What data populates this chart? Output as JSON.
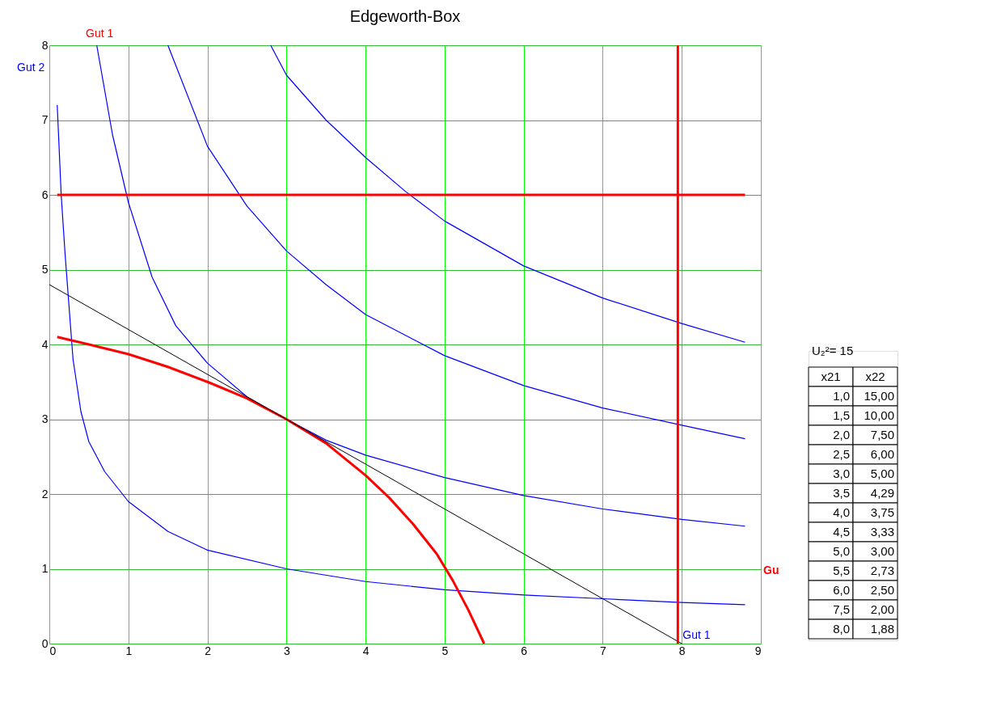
{
  "chart_data": {
    "type": "line",
    "title": "Edgeworth-Box",
    "xlim": [
      0,
      9
    ],
    "ylim": [
      0,
      8
    ],
    "xticks": [
      0,
      1,
      2,
      3,
      4,
      5,
      6,
      7,
      8,
      9
    ],
    "yticks": [
      0,
      1,
      2,
      3,
      4,
      5,
      6,
      7,
      8
    ],
    "grid": true,
    "marker": "none",
    "line_style": "solid",
    "series": [
      {
        "color": "#0000ff",
        "x": [
          0.1,
          0.15,
          0.2,
          0.25,
          0.3,
          0.4,
          0.5,
          0.7,
          1,
          1.5,
          2,
          3,
          4,
          5,
          6,
          7,
          8,
          8.8
        ],
        "values": [
          7.2,
          6.0,
          5.2,
          4.5,
          3.8,
          3.1,
          2.7,
          2.3,
          1.9,
          1.5,
          1.25,
          1.0,
          0.83,
          0.72,
          0.65,
          0.6,
          0.55,
          0.52
        ]
      },
      {
        "color": "#0000ff",
        "x": [
          0.6,
          0.8,
          1,
          1.3,
          1.6,
          2,
          2.5,
          3,
          3.5,
          4,
          5,
          6,
          7,
          8,
          8.8
        ],
        "values": [
          8,
          6.8,
          5.9,
          4.9,
          4.25,
          3.75,
          3.3,
          3.0,
          2.72,
          2.52,
          2.22,
          1.98,
          1.8,
          1.66,
          1.57
        ]
      },
      {
        "color": "#0000ff",
        "x": [
          1.5,
          2,
          2.5,
          3,
          3.5,
          4,
          5,
          6,
          7,
          8,
          8.8
        ],
        "values": [
          8,
          6.65,
          5.85,
          5.25,
          4.8,
          4.4,
          3.85,
          3.45,
          3.15,
          2.92,
          2.74
        ]
      },
      {
        "color": "#0000ff",
        "x": [
          2.8,
          3,
          3.5,
          4,
          4.5,
          5,
          6,
          7,
          8,
          8.8
        ],
        "values": [
          8,
          7.6,
          7.0,
          6.5,
          6.05,
          5.65,
          5.05,
          4.62,
          4.28,
          4.03
        ]
      },
      {
        "color": "#ff0000",
        "x": [
          0.1,
          0.5,
          1,
          1.5,
          2,
          2.5,
          3,
          3.5,
          4,
          4.3,
          4.6,
          4.9,
          5.1,
          5.3,
          5.5
        ],
        "values": [
          4.1,
          4.0,
          3.87,
          3.7,
          3.5,
          3.28,
          3.0,
          2.68,
          2.25,
          1.95,
          1.6,
          1.2,
          0.85,
          0.45,
          0
        ]
      },
      {
        "color": "#000000",
        "x": [
          0,
          8
        ],
        "values": [
          4.8,
          0
        ]
      },
      {
        "color": "#ff0000",
        "x": [
          0.1,
          8.8
        ],
        "values": [
          6,
          6
        ]
      },
      {
        "color": "#ff0000",
        "x": [
          7.95,
          7.95
        ],
        "values": [
          0,
          8
        ]
      }
    ],
    "annotations": [
      "Gut 1",
      "Gut 2",
      "Gu",
      "Gut 1",
      "U₂²= 15",
      "x21",
      "x22",
      "1,0",
      "15,00",
      "1,5",
      "10,00",
      "2,0",
      "7,50",
      "2,5",
      "6,00",
      "3,0",
      "5,00",
      "3,5",
      "4,29",
      "4,0",
      "3,75",
      "4,5",
      "3,33",
      "5,0",
      "3,00",
      "5,5",
      "2,73",
      "6,0",
      "2,50",
      "7,5",
      "2,00",
      "8,0",
      "1,88"
    ]
  }
}
